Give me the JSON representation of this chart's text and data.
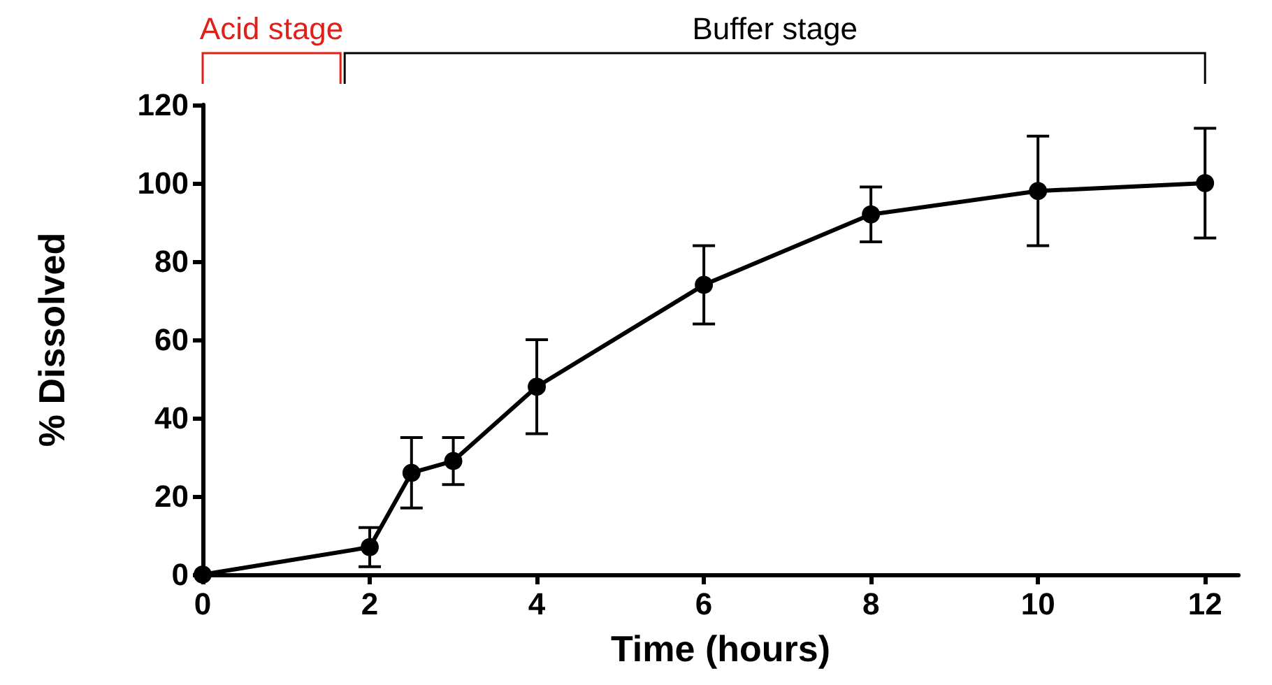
{
  "chart_data": {
    "type": "line",
    "xlabel": "Time (hours)",
    "ylabel": "% Dissolved",
    "x": [
      0,
      2,
      2.5,
      3,
      4,
      6,
      8,
      10,
      12
    ],
    "series": [
      {
        "color": "#000000",
        "values": [
          0,
          7,
          26,
          29,
          48,
          74,
          92,
          98,
          100
        ],
        "errors": [
          null,
          5,
          9,
          6,
          12,
          10,
          7,
          14,
          14
        ]
      }
    ],
    "xlim": [
      0,
      12.4
    ],
    "xticks": [
      0,
      2,
      4,
      6,
      8,
      10,
      12
    ],
    "ylim": [
      0,
      120
    ],
    "yticks": [
      0,
      20,
      40,
      60,
      80,
      100,
      120
    ],
    "annotations": [
      "Acid stage",
      "Buffer stage"
    ],
    "grid": false,
    "marker": "circle",
    "line_style": "solid"
  }
}
